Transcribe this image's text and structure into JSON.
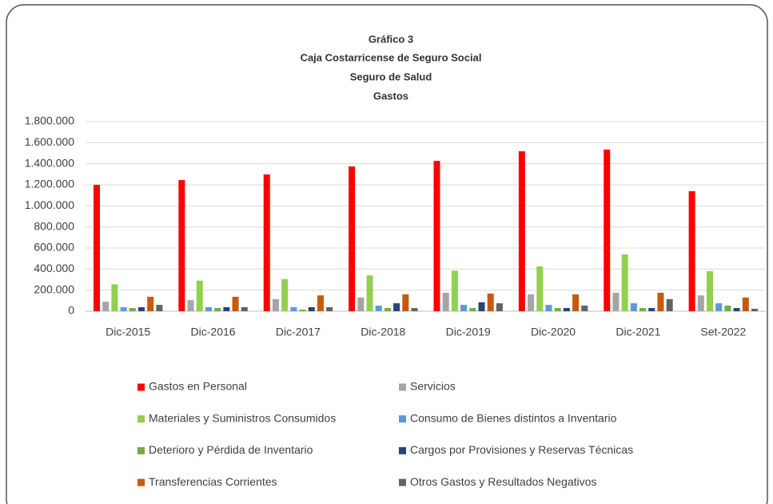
{
  "chart_data": {
    "type": "bar",
    "title": "Gráfico 3",
    "subtitle": [
      "Caja Costarricense de Seguro Social",
      "Seguro de Salud",
      "Gastos"
    ],
    "categories": [
      "Dic-2015",
      "Dic-2016",
      "Dic-2017",
      "Dic-2018",
      "Dic-2019",
      "Dic-2020",
      "Dic-2021",
      "Set-2022"
    ],
    "series": [
      {
        "name": "Gastos en Personal",
        "color": "#ff0000",
        "values": [
          1200000,
          1245000,
          1298000,
          1374000,
          1427000,
          1518000,
          1534000,
          1139000
        ]
      },
      {
        "name": "Servicios",
        "color": "#a5a5a5",
        "values": [
          90000,
          105000,
          115000,
          130000,
          175000,
          160000,
          175000,
          150000
        ]
      },
      {
        "name": "Materiales y Suministros Consumidos",
        "color": "#92d050",
        "values": [
          255000,
          290000,
          305000,
          340000,
          385000,
          425000,
          540000,
          380000
        ]
      },
      {
        "name": "Consumo de Bienes distintos a Inventario",
        "color": "#5b9bd5",
        "values": [
          38000,
          38000,
          38000,
          53000,
          60000,
          60000,
          75000,
          75000
        ]
      },
      {
        "name": "Deterioro y Pérdida de Inventario",
        "color": "#70ad47",
        "values": [
          30000,
          30000,
          15000,
          30000,
          30000,
          30000,
          30000,
          53000
        ]
      },
      {
        "name": "Cargos por Provisiones y Reservas Técnicas",
        "color": "#264478",
        "values": [
          38000,
          38000,
          38000,
          75000,
          85000,
          30000,
          30000,
          30000
        ]
      },
      {
        "name": "Transferencias Corrientes",
        "color": "#c55a11",
        "values": [
          137000,
          137000,
          150000,
          160000,
          167000,
          160000,
          175000,
          130000
        ]
      },
      {
        "name": "Otros Gastos y Resultados Negativos",
        "color": "#636363",
        "values": [
          60000,
          38000,
          38000,
          30000,
          75000,
          53000,
          115000,
          23000
        ]
      }
    ],
    "ylim": [
      0,
      1800000
    ],
    "yticks": [
      0,
      {
        "value": 200000,
        "label": "200.000"
      },
      {
        "value": 400000,
        "label": "400.000"
      },
      {
        "value": 600000,
        "label": "600.000"
      },
      {
        "value": 800000,
        "label": "800.000"
      },
      {
        "value": 1000000,
        "label": "1.000.000"
      },
      {
        "value": 1200000,
        "label": "1.200.000"
      },
      {
        "value": 1400000,
        "label": "1.400.000"
      },
      {
        "value": 1600000,
        "label": "1.600.000"
      },
      {
        "value": 1800000,
        "label": "1.800.000"
      }
    ],
    "grid": true
  }
}
